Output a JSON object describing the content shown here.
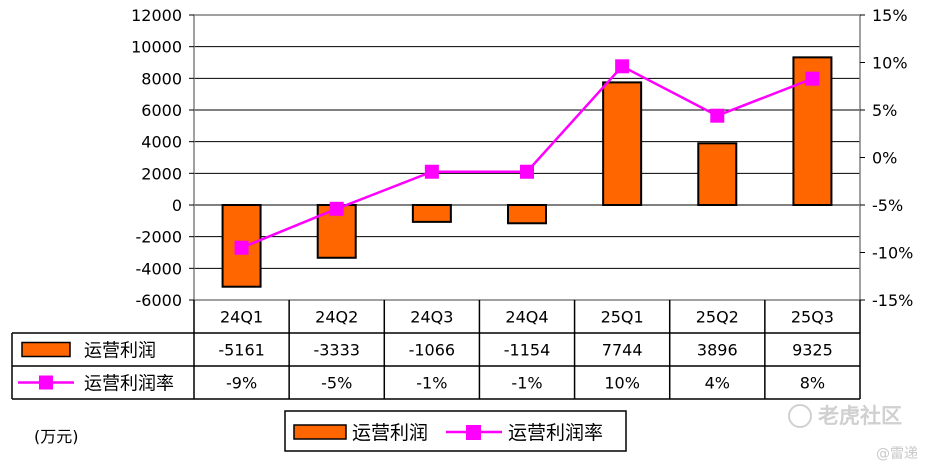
{
  "chart_data": {
    "type": "bar",
    "categories": [
      "24Q1",
      "24Q2",
      "24Q3",
      "24Q4",
      "25Q1",
      "25Q2",
      "25Q3"
    ],
    "series": [
      {
        "name": "运营利润",
        "type": "bar",
        "axis": "left",
        "values": [
          -5161,
          -3333,
          -1066,
          -1154,
          7744,
          3896,
          9325
        ],
        "labels": [
          "-5161",
          "-3333",
          "-1066",
          "-1154",
          "7744",
          "3896",
          "9325"
        ],
        "color": "#FF6600"
      },
      {
        "name": "运营利润率",
        "type": "line",
        "axis": "right",
        "values": [
          -9.5,
          -5.4,
          -1.5,
          -1.5,
          9.6,
          4.4,
          8.3
        ],
        "labels": [
          "-9%",
          "-5%",
          "-1%",
          "-1%",
          "10%",
          "4%",
          "8%"
        ],
        "color": "#FF00FF"
      }
    ],
    "left_axis": {
      "ylim": [
        -6000,
        12000
      ],
      "ticks": [
        -6000,
        -4000,
        -2000,
        0,
        2000,
        4000,
        6000,
        8000,
        10000,
        12000
      ],
      "tick_labels": [
        "-6000",
        "-4000",
        "-2000",
        "0",
        "2000",
        "4000",
        "6000",
        "8000",
        "10000",
        "12000"
      ]
    },
    "right_axis": {
      "ylim": [
        -15,
        15
      ],
      "ticks": [
        -15,
        -10,
        -5,
        0,
        5,
        10,
        15
      ],
      "tick_labels": [
        "-15%",
        "-10%",
        "-5%",
        "0%",
        "5%",
        "10%",
        "15%"
      ]
    },
    "grid": true,
    "legend": "bottom-center",
    "unit_note": "(万元)"
  },
  "watermark": {
    "brand": "老虎社区",
    "author": "@雷递"
  }
}
